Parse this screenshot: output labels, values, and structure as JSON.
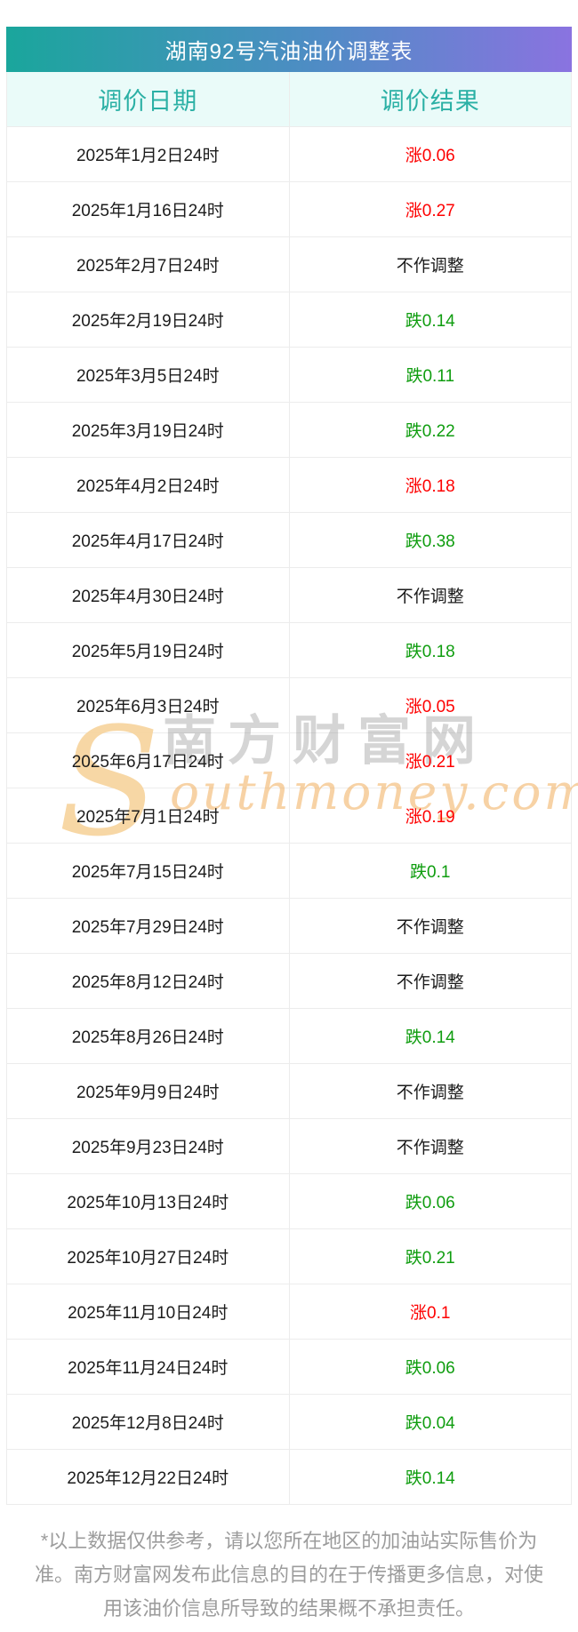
{
  "title": "湖南92号汽油油价调整表",
  "table": {
    "headers": [
      "调价日期",
      "调价结果"
    ]
  },
  "chart_data": {
    "type": "table",
    "title": "湖南92号汽油油价调整表",
    "columns": [
      "调价日期",
      "调价结果"
    ],
    "rows": [
      [
        "2025年1月2日24时",
        "涨0.06"
      ],
      [
        "2025年1月16日24时",
        "涨0.27"
      ],
      [
        "2025年2月7日24时",
        "不作调整"
      ],
      [
        "2025年2月19日24时",
        "跌0.14"
      ],
      [
        "2025年3月5日24时",
        "跌0.11"
      ],
      [
        "2025年3月19日24时",
        "跌0.22"
      ],
      [
        "2025年4月2日24时",
        "涨0.18"
      ],
      [
        "2025年4月17日24时",
        "跌0.38"
      ],
      [
        "2025年4月30日24时",
        "不作调整"
      ],
      [
        "2025年5月19日24时",
        "跌0.18"
      ],
      [
        "2025年6月3日24时",
        "涨0.05"
      ],
      [
        "2025年6月17日24时",
        "涨0.21"
      ],
      [
        "2025年7月1日24时",
        "涨0.19"
      ],
      [
        "2025年7月15日24时",
        "跌0.1"
      ],
      [
        "2025年7月29日24时",
        "不作调整"
      ],
      [
        "2025年8月12日24时",
        "不作调整"
      ],
      [
        "2025年8月26日24时",
        "跌0.14"
      ],
      [
        "2025年9月9日24时",
        "不作调整"
      ],
      [
        "2025年9月23日24时",
        "不作调整"
      ],
      [
        "2025年10月13日24时",
        "跌0.06"
      ],
      [
        "2025年10月27日24时",
        "跌0.21"
      ],
      [
        "2025年11月10日24时",
        "涨0.1"
      ],
      [
        "2025年11月24日24时",
        "跌0.06"
      ],
      [
        "2025年12月8日24时",
        "跌0.04"
      ],
      [
        "2025年12月22日24时",
        "跌0.14"
      ]
    ],
    "legend": {
      "涨": "price up (red)",
      "跌": "price down (green)",
      "不作调整": "no adjustment (black)"
    }
  },
  "watermark": {
    "en_initial": "S",
    "brand_cn": "南方财富网",
    "en_rest": "outhmoney.com"
  },
  "footer": {
    "lines": [
      "*以上数据仅供参考，请以您所在地区的加油站实际售价为",
      "准。南方财富网发布此信息的目的在于传播更多信息，对使",
      "用该油价信息所导致的结果概不承担责任。"
    ]
  },
  "colors": {
    "up": "#fe0000",
    "down": "#0f9d0f",
    "neutral": "#1c1c1c",
    "gradient_start": "#1aa69c",
    "gradient_mid": "#4f8cc5",
    "gradient_end": "#8a73e0",
    "header_bg": "#eafbf9",
    "header_text": "#2bb0a5"
  }
}
